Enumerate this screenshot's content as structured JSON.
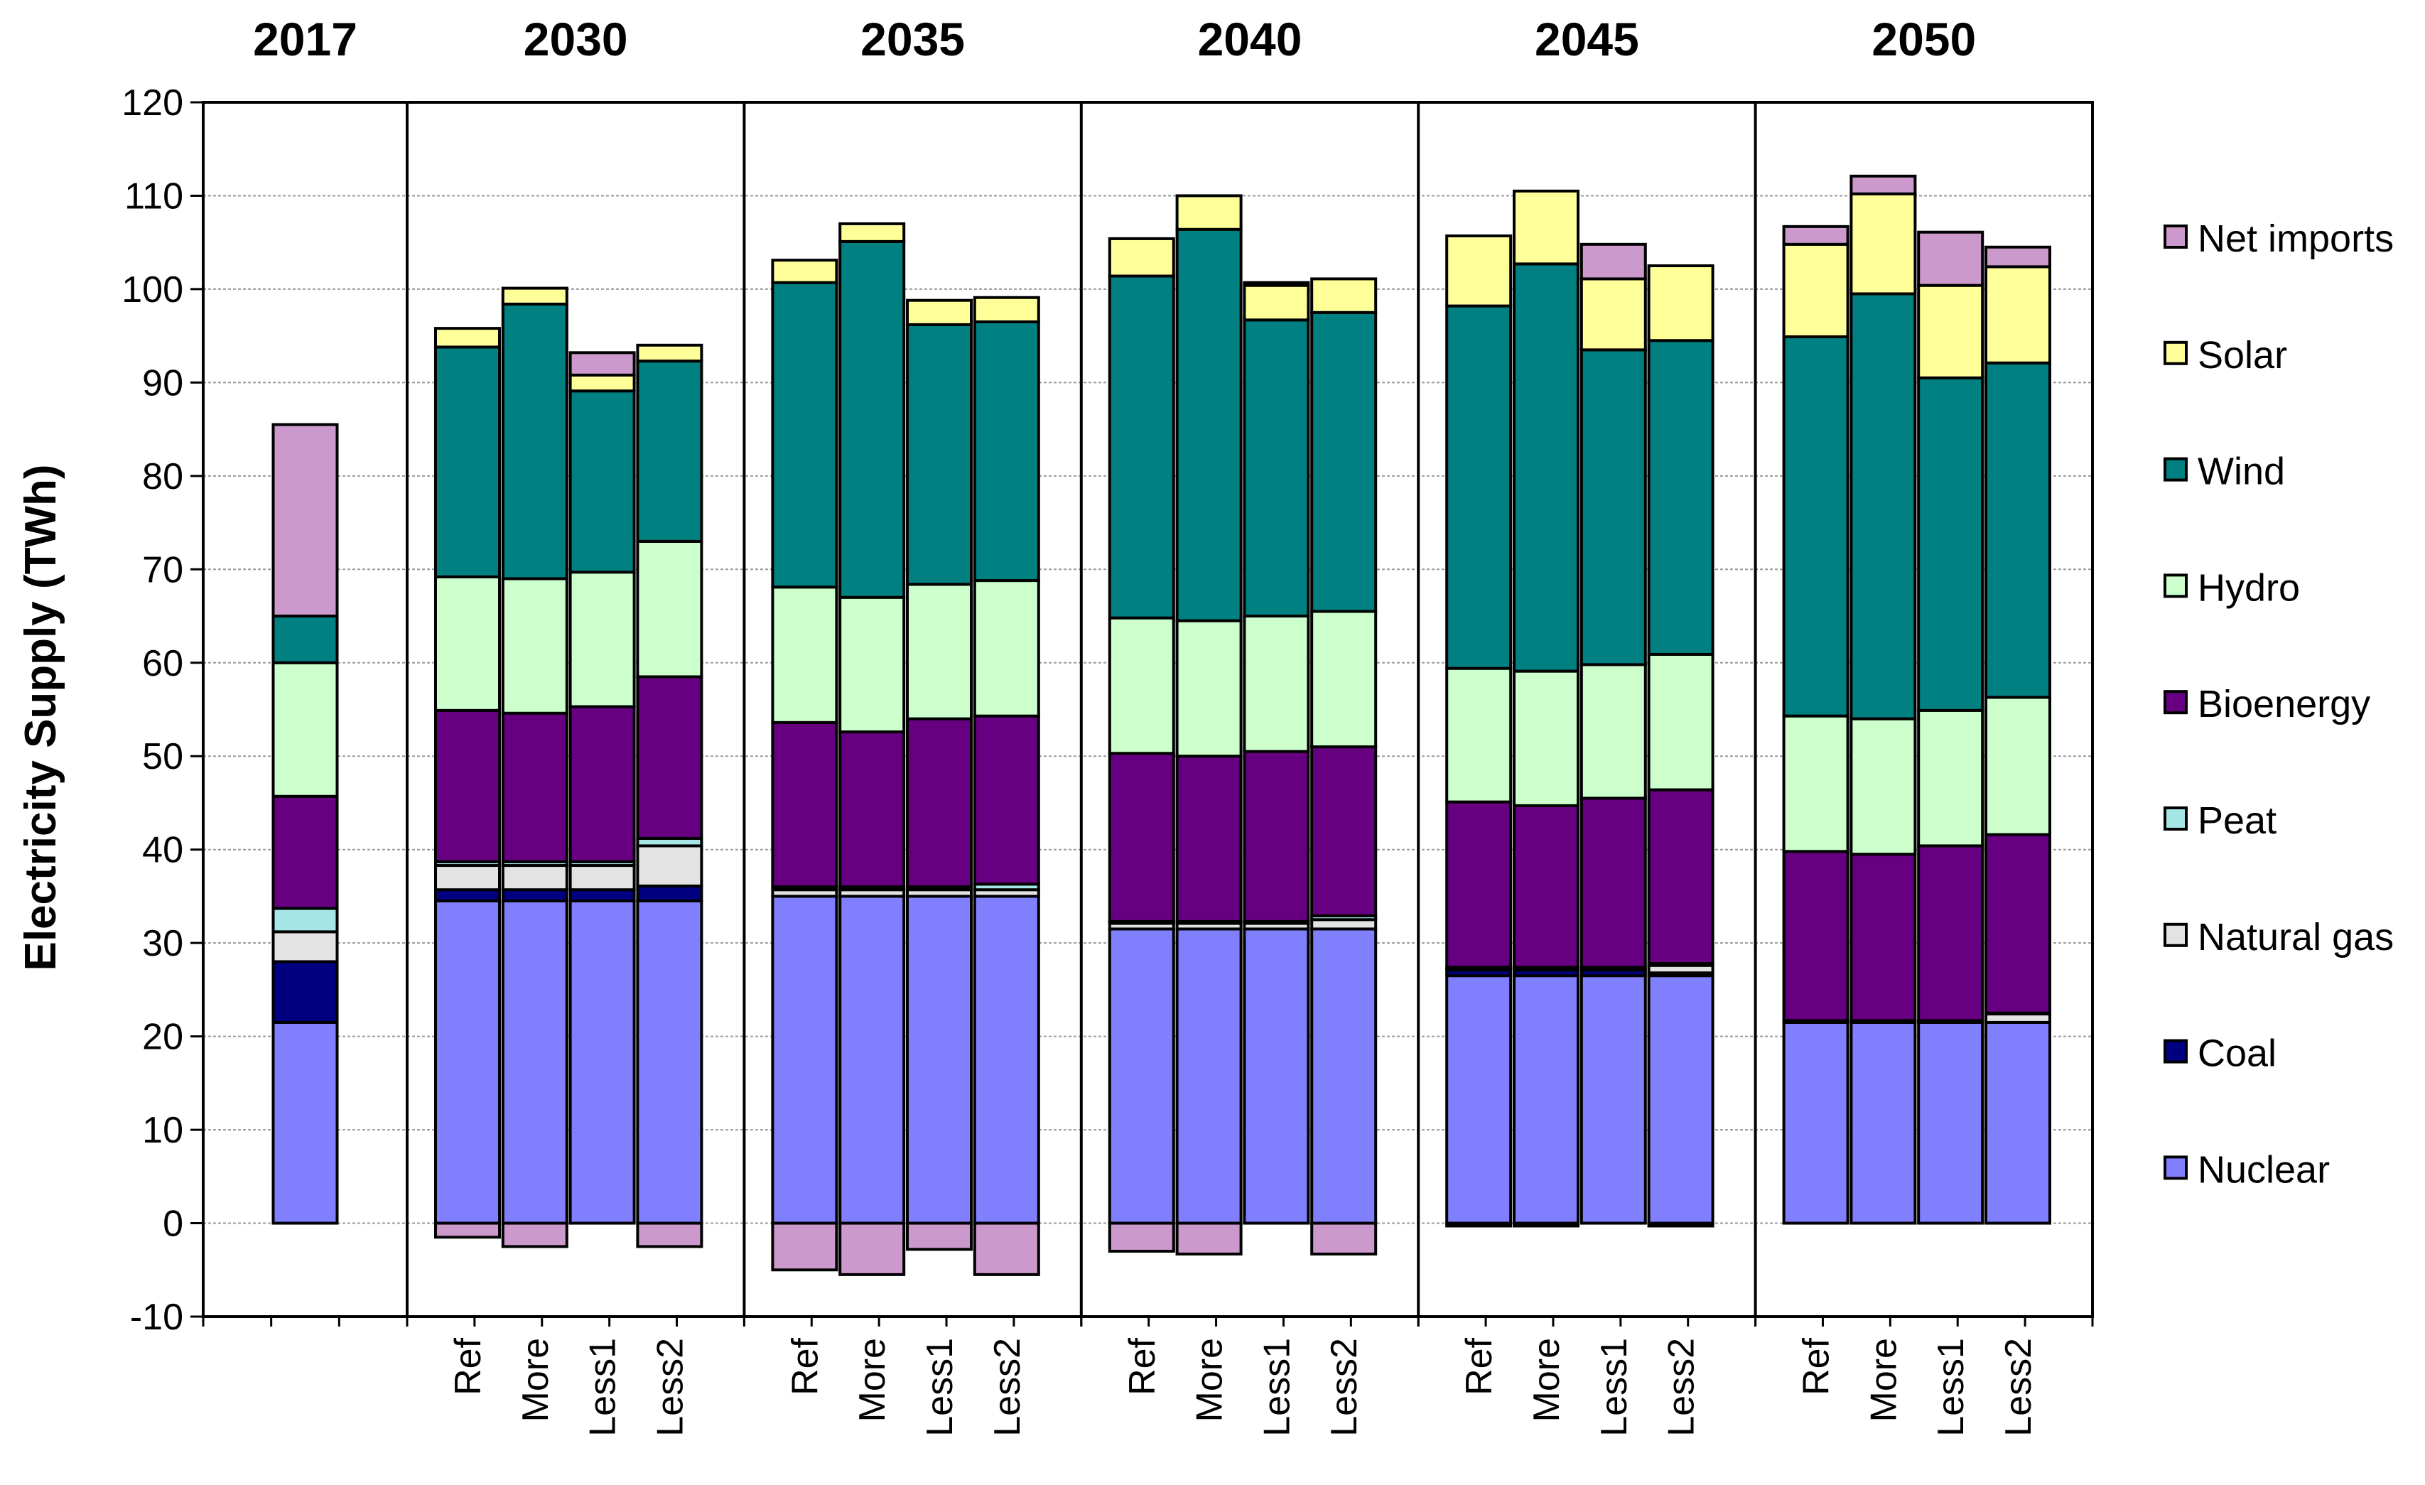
{
  "chart_data": {
    "type": "bar",
    "stacked": true,
    "title": "",
    "xlabel": "",
    "ylabel": "Electricity  Supply (TWh)",
    "ylim": [
      -10,
      120
    ],
    "yticks": [
      -10,
      0,
      10,
      20,
      30,
      40,
      50,
      60,
      70,
      80,
      90,
      100,
      110,
      120
    ],
    "grid": true,
    "legend_position": "right",
    "groups": [
      {
        "year": "2017",
        "bars": [
          {
            "label": "",
            "values": {
              "Nuclear": 21.5,
              "Coal": 6.5,
              "Natural gas": 3.2,
              "Peat": 2.5,
              "Bioenergy": 12.0,
              "Hydro": 14.3,
              "Wind": 5.0,
              "Solar": 0,
              "Net imports": 20.5
            }
          }
        ]
      },
      {
        "year": "2030",
        "bars": [
          {
            "label": "Ref",
            "values": {
              "Nuclear": 34.5,
              "Coal": 1.2,
              "Natural gas": 2.6,
              "Peat": 0.4,
              "Bioenergy": 16.2,
              "Hydro": 14.3,
              "Wind": 24.6,
              "Solar": 2.0,
              "Net imports": -1.5
            }
          },
          {
            "label": "More",
            "values": {
              "Nuclear": 34.5,
              "Coal": 1.2,
              "Natural gas": 2.6,
              "Peat": 0.4,
              "Bioenergy": 15.9,
              "Hydro": 14.4,
              "Wind": 29.4,
              "Solar": 1.7,
              "Net imports": -2.5
            }
          },
          {
            "label": "Less1",
            "values": {
              "Nuclear": 34.5,
              "Coal": 1.2,
              "Natural gas": 2.6,
              "Peat": 0.4,
              "Bioenergy": 16.6,
              "Hydro": 14.4,
              "Wind": 19.4,
              "Solar": 1.7,
              "Net imports": 2.4
            }
          },
          {
            "label": "Less2",
            "values": {
              "Nuclear": 34.5,
              "Coal": 1.6,
              "Natural gas": 4.3,
              "Peat": 0.8,
              "Bioenergy": 17.3,
              "Hydro": 14.5,
              "Wind": 19.3,
              "Solar": 1.7,
              "Net imports": -2.5
            }
          }
        ]
      },
      {
        "year": "2035",
        "bars": [
          {
            "label": "Ref",
            "values": {
              "Nuclear": 35.0,
              "Coal": 0,
              "Natural gas": 0.7,
              "Peat": 0.3,
              "Bioenergy": 17.6,
              "Hydro": 14.5,
              "Wind": 32.6,
              "Solar": 2.4,
              "Net imports": -5.0
            }
          },
          {
            "label": "More",
            "values": {
              "Nuclear": 35.0,
              "Coal": 0,
              "Natural gas": 0.7,
              "Peat": 0.3,
              "Bioenergy": 16.6,
              "Hydro": 14.4,
              "Wind": 38.1,
              "Solar": 1.9,
              "Net imports": -5.5
            }
          },
          {
            "label": "Less1",
            "values": {
              "Nuclear": 35.0,
              "Coal": 0,
              "Natural gas": 0.7,
              "Peat": 0.3,
              "Bioenergy": 18.0,
              "Hydro": 14.4,
              "Wind": 27.8,
              "Solar": 2.6,
              "Net imports": -2.8
            }
          },
          {
            "label": "Less2",
            "values": {
              "Nuclear": 35.0,
              "Coal": 0,
              "Natural gas": 0.7,
              "Peat": 0.6,
              "Bioenergy": 18.0,
              "Hydro": 14.5,
              "Wind": 27.7,
              "Solar": 2.6,
              "Net imports": -5.5
            }
          }
        ]
      },
      {
        "year": "2040",
        "bars": [
          {
            "label": "Ref",
            "values": {
              "Nuclear": 31.5,
              "Coal": 0,
              "Natural gas": 0.6,
              "Peat": 0.2,
              "Bioenergy": 18.0,
              "Hydro": 14.5,
              "Wind": 36.6,
              "Solar": 4.0,
              "Net imports": -3.0
            }
          },
          {
            "label": "More",
            "values": {
              "Nuclear": 31.5,
              "Coal": 0,
              "Natural gas": 0.6,
              "Peat": 0.2,
              "Bioenergy": 17.7,
              "Hydro": 14.5,
              "Wind": 41.9,
              "Solar": 3.6,
              "Net imports": -3.3
            }
          },
          {
            "label": "Less1",
            "values": {
              "Nuclear": 31.5,
              "Coal": 0,
              "Natural gas": 0.6,
              "Peat": 0.2,
              "Bioenergy": 18.2,
              "Hydro": 14.5,
              "Wind": 31.7,
              "Solar": 3.7,
              "Net imports": 0.3
            }
          },
          {
            "label": "Less2",
            "values": {
              "Nuclear": 31.5,
              "Coal": 0,
              "Natural gas": 1.0,
              "Peat": 0.4,
              "Bioenergy": 18.1,
              "Hydro": 14.5,
              "Wind": 32.0,
              "Solar": 3.6,
              "Net imports": -3.3
            }
          }
        ]
      },
      {
        "year": "2045",
        "bars": [
          {
            "label": "Ref",
            "values": {
              "Nuclear": 26.5,
              "Coal": 0.6,
              "Natural gas": 0.2,
              "Peat": 0.1,
              "Bioenergy": 17.7,
              "Hydro": 14.3,
              "Wind": 38.8,
              "Solar": 7.5,
              "Net imports": -0.3
            }
          },
          {
            "label": "More",
            "values": {
              "Nuclear": 26.5,
              "Coal": 0.6,
              "Natural gas": 0.2,
              "Peat": 0.1,
              "Bioenergy": 17.3,
              "Hydro": 14.4,
              "Wind": 43.6,
              "Solar": 7.8,
              "Net imports": -0.3
            }
          },
          {
            "label": "Less1",
            "values": {
              "Nuclear": 26.5,
              "Coal": 0.6,
              "Natural gas": 0.2,
              "Peat": 0.1,
              "Bioenergy": 18.1,
              "Hydro": 14.3,
              "Wind": 33.7,
              "Solar": 7.6,
              "Net imports": 3.7
            }
          },
          {
            "label": "Less2",
            "values": {
              "Nuclear": 26.5,
              "Coal": 0.3,
              "Natural gas": 0.8,
              "Peat": 0.2,
              "Bioenergy": 18.6,
              "Hydro": 14.5,
              "Wind": 33.6,
              "Solar": 8.0,
              "Net imports": -0.3
            }
          }
        ]
      },
      {
        "year": "2050",
        "bars": [
          {
            "label": "Ref",
            "values": {
              "Nuclear": 21.5,
              "Coal": 0,
              "Natural gas": 0.1,
              "Peat": 0.1,
              "Bioenergy": 18.1,
              "Hydro": 14.5,
              "Wind": 40.6,
              "Solar": 9.9,
              "Net imports": 1.9
            }
          },
          {
            "label": "More",
            "values": {
              "Nuclear": 21.5,
              "Coal": 0,
              "Natural gas": 0.1,
              "Peat": 0.1,
              "Bioenergy": 17.8,
              "Hydro": 14.5,
              "Wind": 45.5,
              "Solar": 10.7,
              "Net imports": 1.9
            }
          },
          {
            "label": "Less1",
            "values": {
              "Nuclear": 21.5,
              "Coal": 0,
              "Natural gas": 0.1,
              "Peat": 0.1,
              "Bioenergy": 18.7,
              "Hydro": 14.5,
              "Wind": 35.6,
              "Solar": 9.9,
              "Net imports": 5.7
            }
          },
          {
            "label": "Less2",
            "values": {
              "Nuclear": 21.5,
              "Coal": 0,
              "Natural gas": 0.9,
              "Peat": 0.1,
              "Bioenergy": 19.1,
              "Hydro": 14.7,
              "Wind": 35.8,
              "Solar": 10.3,
              "Net imports": 2.1
            }
          }
        ]
      }
    ],
    "series": [
      {
        "name": "Nuclear",
        "color": "#8080ff"
      },
      {
        "name": "Coal",
        "color": "#000080"
      },
      {
        "name": "Natural gas",
        "color": "#e3e3e3"
      },
      {
        "name": "Peat",
        "color": "#a6e6e6"
      },
      {
        "name": "Bioenergy",
        "color": "#660080"
      },
      {
        "name": "Hydro",
        "color": "#ccffcc"
      },
      {
        "name": "Wind",
        "color": "#008080"
      },
      {
        "name": "Solar",
        "color": "#ffff99"
      },
      {
        "name": "Net imports",
        "color": "#cc99cc"
      }
    ],
    "legend_order": [
      "Net imports",
      "Solar",
      "Wind",
      "Hydro",
      "Bioenergy",
      "Peat",
      "Natural gas",
      "Coal",
      "Nuclear"
    ]
  }
}
